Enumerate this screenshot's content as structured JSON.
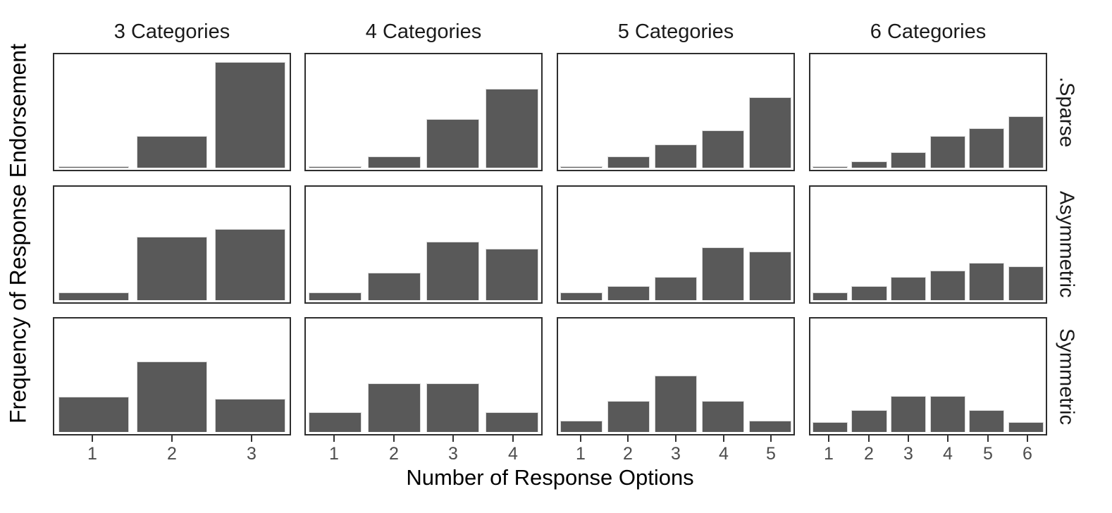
{
  "chart_data": {
    "type": "bar",
    "title": "",
    "xlabel": "Number of Response Options",
    "ylabel": "Frequency of Response Endorsement",
    "facet_columns": [
      "3 Categories",
      "4 Categories",
      "5 Categories",
      "6 Categories"
    ],
    "facet_rows": [
      ".Sparse",
      "Asymmetric",
      "Symmetric"
    ],
    "legend": "none",
    "grid": "off",
    "y_axis": "unlabeled; bar heights are relative frequencies estimated as fraction of panel height",
    "bar_color": "#595959",
    "bar_outline_color": "#d9d9d9",
    "panel_border_color": "#2e2e2e",
    "tick_label_color": "#4d4d4d",
    "panels": [
      {
        "row": ".Sparse",
        "col": "3 Categories",
        "categories": [
          1,
          2,
          3
        ],
        "heights": [
          0.01,
          0.29,
          0.96
        ]
      },
      {
        "row": ".Sparse",
        "col": "4 Categories",
        "categories": [
          1,
          2,
          3,
          4
        ],
        "heights": [
          0.01,
          0.1,
          0.44,
          0.72
        ]
      },
      {
        "row": ".Sparse",
        "col": "5 Categories",
        "categories": [
          1,
          2,
          3,
          4,
          5
        ],
        "heights": [
          0.01,
          0.1,
          0.21,
          0.34,
          0.64
        ]
      },
      {
        "row": ".Sparse",
        "col": "6 Categories",
        "categories": [
          1,
          2,
          3,
          4,
          5,
          6
        ],
        "heights": [
          0.01,
          0.06,
          0.14,
          0.29,
          0.36,
          0.47
        ]
      },
      {
        "row": "Asymmetric",
        "col": "3 Categories",
        "categories": [
          1,
          2,
          3
        ],
        "heights": [
          0.07,
          0.58,
          0.65
        ]
      },
      {
        "row": "Asymmetric",
        "col": "4 Categories",
        "categories": [
          1,
          2,
          3,
          4
        ],
        "heights": [
          0.07,
          0.25,
          0.53,
          0.47
        ]
      },
      {
        "row": "Asymmetric",
        "col": "5 Categories",
        "categories": [
          1,
          2,
          3,
          4,
          5
        ],
        "heights": [
          0.07,
          0.13,
          0.21,
          0.48,
          0.44
        ]
      },
      {
        "row": "Asymmetric",
        "col": "6 Categories",
        "categories": [
          1,
          2,
          3,
          4,
          5,
          6
        ],
        "heights": [
          0.07,
          0.13,
          0.21,
          0.27,
          0.34,
          0.31
        ]
      },
      {
        "row": "Symmetric",
        "col": "3 Categories",
        "categories": [
          1,
          2,
          3
        ],
        "heights": [
          0.32,
          0.64,
          0.3
        ]
      },
      {
        "row": "Symmetric",
        "col": "4 Categories",
        "categories": [
          1,
          2,
          3,
          4
        ],
        "heights": [
          0.18,
          0.44,
          0.44,
          0.18
        ]
      },
      {
        "row": "Symmetric",
        "col": "5 Categories",
        "categories": [
          1,
          2,
          3,
          4,
          5
        ],
        "heights": [
          0.1,
          0.28,
          0.51,
          0.28,
          0.1
        ]
      },
      {
        "row": "Symmetric",
        "col": "6 Categories",
        "categories": [
          1,
          2,
          3,
          4,
          5,
          6
        ],
        "heights": [
          0.09,
          0.2,
          0.33,
          0.33,
          0.2,
          0.09
        ]
      }
    ]
  }
}
